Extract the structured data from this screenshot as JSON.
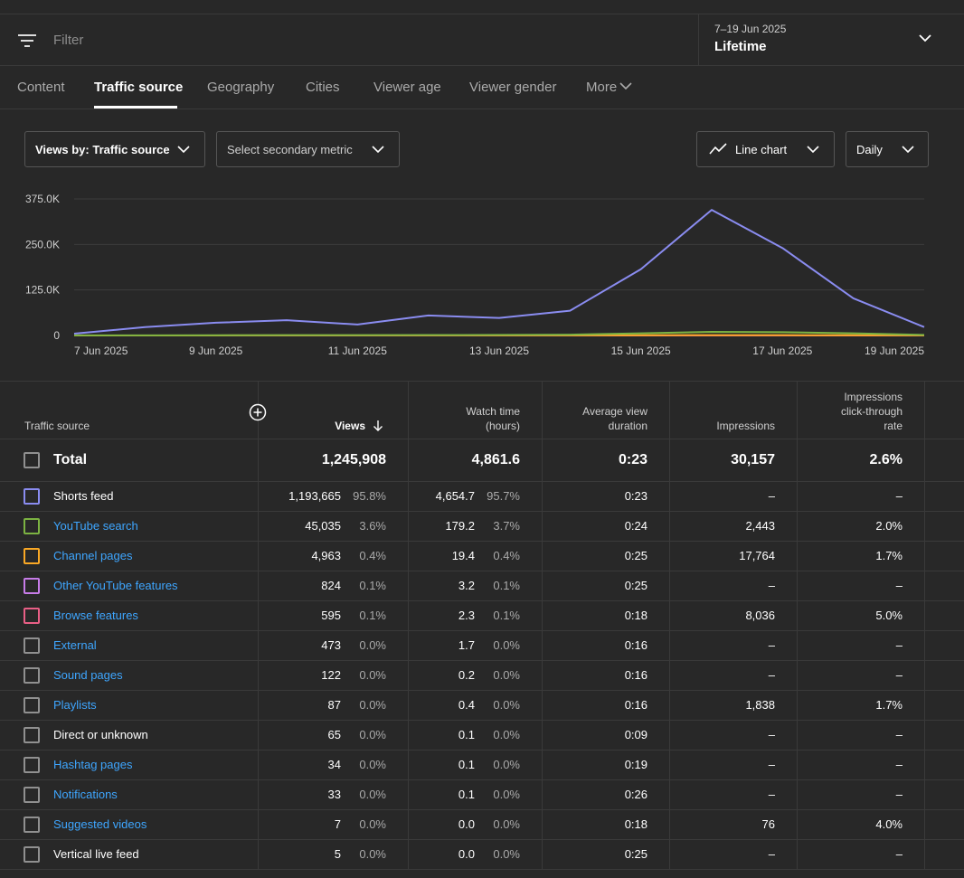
{
  "filter": {
    "placeholder": "Filter"
  },
  "date": {
    "range": "7–19 Jun 2025",
    "period": "Lifetime"
  },
  "tabs": [
    "Content",
    "Traffic source",
    "Geography",
    "Cities",
    "Viewer age",
    "Viewer gender",
    "More"
  ],
  "active_tab": "Traffic source",
  "controls": {
    "views_by": "Views by: Traffic source",
    "secondary": "Select secondary metric",
    "chart_type": "Line chart",
    "interval": "Daily"
  },
  "chart_data": {
    "type": "line",
    "x": [
      "7 Jun 2025",
      "8 Jun 2025",
      "9 Jun 2025",
      "10 Jun 2025",
      "11 Jun 2025",
      "12 Jun 2025",
      "13 Jun 2025",
      "14 Jun 2025",
      "15 Jun 2025",
      "16 Jun 2025",
      "17 Jun 2025",
      "18 Jun 2025",
      "19 Jun 2025"
    ],
    "x_tick_labels": [
      "7 Jun 2025",
      "9 Jun 2025",
      "11 Jun 2025",
      "13 Jun 2025",
      "15 Jun 2025",
      "17 Jun 2025",
      "19 Jun 2025"
    ],
    "y_tick_labels": [
      "375.0K",
      "250.0K",
      "125.0K",
      "0"
    ],
    "ylim": [
      0,
      375000
    ],
    "grid": true,
    "series": [
      {
        "name": "Shorts feed",
        "color": "#8a8cf0",
        "values": [
          5000,
          23000,
          35000,
          42000,
          30000,
          55000,
          48000,
          68000,
          182000,
          345000,
          240000,
          102000,
          23000
        ]
      },
      {
        "name": "YouTube search",
        "color": "#7cb342",
        "values": [
          200,
          400,
          700,
          900,
          800,
          1200,
          1500,
          2300,
          6000,
          10000,
          9000,
          6000,
          1500
        ]
      },
      {
        "name": "Channel pages",
        "color": "#f9a825",
        "values": [
          50,
          100,
          150,
          200,
          200,
          250,
          300,
          350,
          600,
          900,
          800,
          500,
          200
        ]
      },
      {
        "name": "Browse features",
        "color": "#e95f86",
        "values": [
          20,
          30,
          40,
          40,
          40,
          50,
          50,
          50,
          70,
          90,
          70,
          40,
          20
        ]
      }
    ]
  },
  "table": {
    "headers": {
      "source": "Traffic source",
      "views": "Views",
      "watch_time_1": "Watch time",
      "watch_time_2": "(hours)",
      "avd_1": "Average view",
      "avd_2": "duration",
      "impressions": "Impressions",
      "ctr_1": "Impressions",
      "ctr_2": "click-through",
      "ctr_3": "rate"
    },
    "total": {
      "label": "Total",
      "views": "1,245,908",
      "watch": "4,861.6",
      "avd": "0:23",
      "impressions": "30,157",
      "ctr": "2.6%"
    },
    "rows": [
      {
        "name": "Shorts feed",
        "link": false,
        "color": "#8a8cf0",
        "views": "1,193,665",
        "views_pct": "95.8%",
        "watch": "4,654.7",
        "watch_pct": "95.7%",
        "avd": "0:23",
        "impressions": "–",
        "ctr": "–"
      },
      {
        "name": "YouTube search",
        "link": true,
        "color": "#7cb342",
        "views": "45,035",
        "views_pct": "3.6%",
        "watch": "179.2",
        "watch_pct": "3.7%",
        "avd": "0:24",
        "impressions": "2,443",
        "ctr": "2.0%"
      },
      {
        "name": "Channel pages",
        "link": true,
        "color": "#f9a825",
        "views": "4,963",
        "views_pct": "0.4%",
        "watch": "19.4",
        "watch_pct": "0.4%",
        "avd": "0:25",
        "impressions": "17,764",
        "ctr": "1.7%"
      },
      {
        "name": "Other YouTube features",
        "link": true,
        "color": "#c77ce8",
        "views": "824",
        "views_pct": "0.1%",
        "watch": "3.2",
        "watch_pct": "0.1%",
        "avd": "0:25",
        "impressions": "–",
        "ctr": "–"
      },
      {
        "name": "Browse features",
        "link": true,
        "color": "#e95f86",
        "views": "595",
        "views_pct": "0.1%",
        "watch": "2.3",
        "watch_pct": "0.1%",
        "avd": "0:18",
        "impressions": "8,036",
        "ctr": "5.0%"
      },
      {
        "name": "External",
        "link": true,
        "color": "#909090",
        "views": "473",
        "views_pct": "0.0%",
        "watch": "1.7",
        "watch_pct": "0.0%",
        "avd": "0:16",
        "impressions": "–",
        "ctr": "–"
      },
      {
        "name": "Sound pages",
        "link": true,
        "color": "#909090",
        "views": "122",
        "views_pct": "0.0%",
        "watch": "0.2",
        "watch_pct": "0.0%",
        "avd": "0:16",
        "impressions": "–",
        "ctr": "–"
      },
      {
        "name": "Playlists",
        "link": true,
        "color": "#909090",
        "views": "87",
        "views_pct": "0.0%",
        "watch": "0.4",
        "watch_pct": "0.0%",
        "avd": "0:16",
        "impressions": "1,838",
        "ctr": "1.7%"
      },
      {
        "name": "Direct or unknown",
        "link": false,
        "color": "#909090",
        "views": "65",
        "views_pct": "0.0%",
        "watch": "0.1",
        "watch_pct": "0.0%",
        "avd": "0:09",
        "impressions": "–",
        "ctr": "–"
      },
      {
        "name": "Hashtag pages",
        "link": true,
        "color": "#909090",
        "views": "34",
        "views_pct": "0.0%",
        "watch": "0.1",
        "watch_pct": "0.0%",
        "avd": "0:19",
        "impressions": "–",
        "ctr": "–"
      },
      {
        "name": "Notifications",
        "link": true,
        "color": "#909090",
        "views": "33",
        "views_pct": "0.0%",
        "watch": "0.1",
        "watch_pct": "0.0%",
        "avd": "0:26",
        "impressions": "–",
        "ctr": "–"
      },
      {
        "name": "Suggested videos",
        "link": true,
        "color": "#909090",
        "views": "7",
        "views_pct": "0.0%",
        "watch": "0.0",
        "watch_pct": "0.0%",
        "avd": "0:18",
        "impressions": "76",
        "ctr": "4.0%"
      },
      {
        "name": "Vertical live feed",
        "link": false,
        "color": "#909090",
        "views": "5",
        "views_pct": "0.0%",
        "watch": "0.0",
        "watch_pct": "0.0%",
        "avd": "0:25",
        "impressions": "–",
        "ctr": "–"
      }
    ]
  }
}
